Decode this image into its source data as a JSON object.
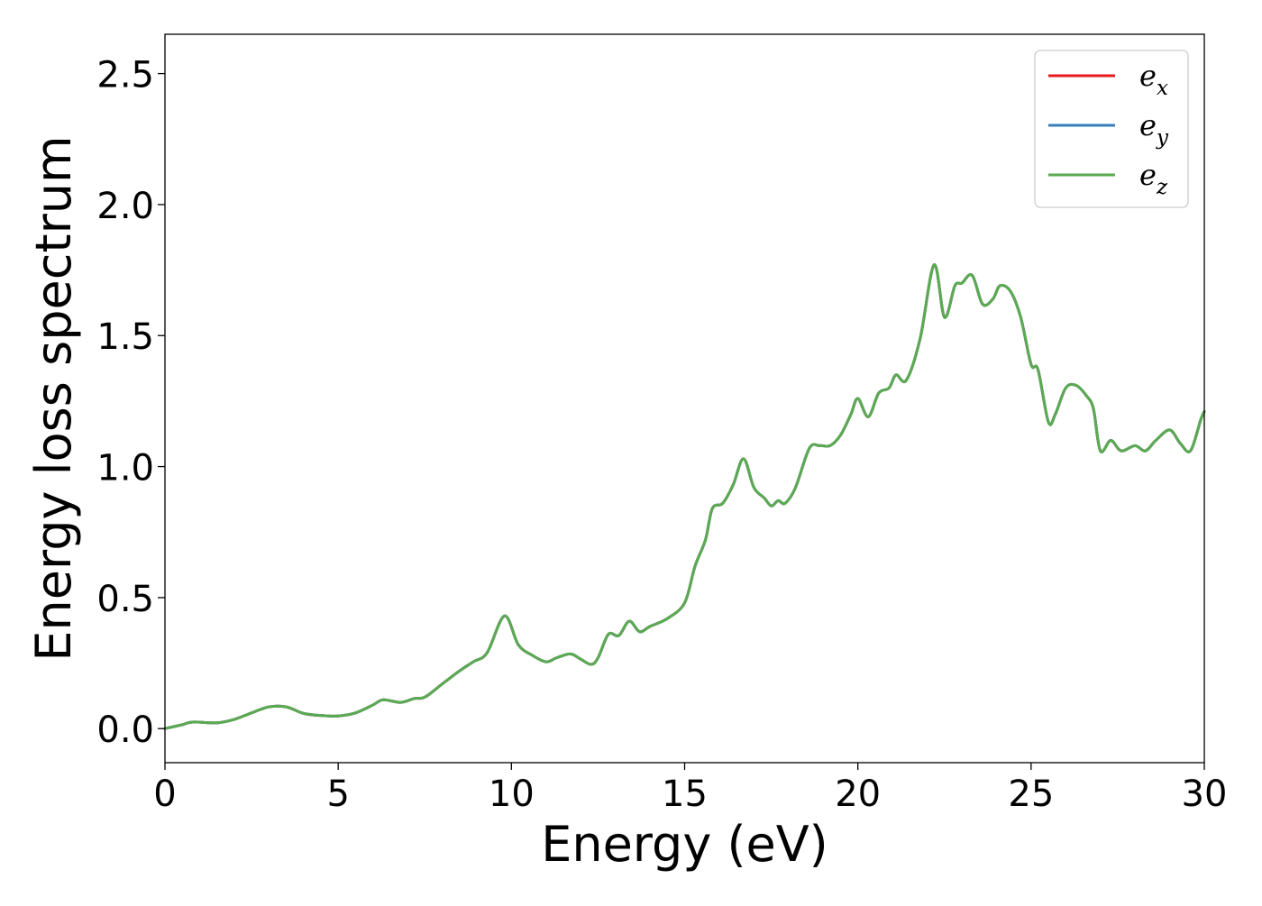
{
  "chart_data": {
    "type": "line",
    "title": "",
    "xlabel": "Energy (eV)",
    "ylabel": "Energy loss spectrum",
    "xlim": [
      0,
      30
    ],
    "ylim": [
      -0.13,
      2.65
    ],
    "xticks": [
      0,
      5,
      10,
      15,
      20,
      25,
      30
    ],
    "xtick_labels": [
      "0",
      "5",
      "10",
      "15",
      "20",
      "25",
      "30"
    ],
    "yticks": [
      0.0,
      0.5,
      1.0,
      1.5,
      2.0,
      2.5
    ],
    "ytick_labels": [
      "0.0",
      "0.5",
      "1.0",
      "1.5",
      "2.0",
      "2.5"
    ],
    "grid": false,
    "legend_position": "top-right",
    "x": [
      0,
      0.5,
      0.8,
      1.5,
      2.0,
      2.5,
      3.0,
      3.5,
      4.0,
      4.5,
      5.0,
      5.5,
      6.0,
      6.3,
      6.8,
      7.2,
      7.5,
      8.0,
      8.5,
      8.9,
      9.3,
      9.8,
      10.2,
      10.6,
      11.0,
      11.3,
      11.7,
      12.0,
      12.3,
      12.5,
      12.8,
      13.1,
      13.4,
      13.7,
      14.0,
      14.5,
      15.0,
      15.3,
      15.6,
      15.8,
      16.1,
      16.4,
      16.7,
      17.0,
      17.3,
      17.5,
      17.7,
      17.9,
      18.2,
      18.6,
      18.9,
      19.2,
      19.5,
      19.8,
      20.0,
      20.3,
      20.6,
      20.9,
      21.1,
      21.4,
      21.8,
      22.2,
      22.5,
      22.8,
      23.0,
      23.3,
      23.6,
      23.9,
      24.1,
      24.4,
      24.7,
      25.0,
      25.2,
      25.5,
      25.7,
      26.0,
      26.3,
      26.6,
      26.8,
      27.0,
      27.3,
      27.6,
      28.0,
      28.3,
      28.6,
      29.0,
      29.3,
      29.6,
      29.9,
      30.0
    ],
    "series": [
      {
        "name": "e_x",
        "color": "#e41a1c",
        "values": [
          0.0,
          0.015,
          0.025,
          0.022,
          0.035,
          0.06,
          0.083,
          0.083,
          0.058,
          0.05,
          0.048,
          0.06,
          0.09,
          0.11,
          0.1,
          0.115,
          0.12,
          0.17,
          0.22,
          0.255,
          0.29,
          0.43,
          0.32,
          0.28,
          0.255,
          0.27,
          0.285,
          0.265,
          0.245,
          0.27,
          0.36,
          0.355,
          0.41,
          0.37,
          0.39,
          0.42,
          0.48,
          0.62,
          0.72,
          0.84,
          0.86,
          0.93,
          1.03,
          0.92,
          0.88,
          0.85,
          0.87,
          0.86,
          0.92,
          1.07,
          1.08,
          1.08,
          1.12,
          1.2,
          1.26,
          1.19,
          1.28,
          1.3,
          1.35,
          1.33,
          1.49,
          1.77,
          1.57,
          1.69,
          1.7,
          1.73,
          1.62,
          1.64,
          1.69,
          1.67,
          1.57,
          1.39,
          1.37,
          1.17,
          1.2,
          1.3,
          1.31,
          1.27,
          1.22,
          1.06,
          1.1,
          1.06,
          1.08,
          1.06,
          1.1,
          1.14,
          1.09,
          1.06,
          1.18,
          1.21
        ]
      },
      {
        "name": "e_y",
        "color": "#377eb8",
        "values": [
          0.0,
          0.015,
          0.025,
          0.022,
          0.035,
          0.06,
          0.083,
          0.083,
          0.058,
          0.05,
          0.048,
          0.06,
          0.09,
          0.11,
          0.1,
          0.115,
          0.12,
          0.17,
          0.22,
          0.255,
          0.29,
          0.43,
          0.32,
          0.28,
          0.255,
          0.27,
          0.285,
          0.265,
          0.245,
          0.27,
          0.36,
          0.355,
          0.41,
          0.37,
          0.39,
          0.42,
          0.48,
          0.62,
          0.72,
          0.84,
          0.86,
          0.93,
          1.03,
          0.92,
          0.88,
          0.85,
          0.87,
          0.86,
          0.92,
          1.07,
          1.08,
          1.08,
          1.12,
          1.2,
          1.26,
          1.19,
          1.28,
          1.3,
          1.35,
          1.33,
          1.49,
          1.77,
          1.57,
          1.69,
          1.7,
          1.73,
          1.62,
          1.64,
          1.69,
          1.67,
          1.57,
          1.39,
          1.37,
          1.17,
          1.2,
          1.3,
          1.31,
          1.27,
          1.22,
          1.06,
          1.1,
          1.06,
          1.08,
          1.06,
          1.1,
          1.14,
          1.09,
          1.06,
          1.18,
          1.21
        ]
      },
      {
        "name": "e_z",
        "color": "#5aaa52",
        "values": [
          0.0,
          0.015,
          0.025,
          0.022,
          0.035,
          0.06,
          0.083,
          0.083,
          0.058,
          0.05,
          0.048,
          0.06,
          0.09,
          0.11,
          0.1,
          0.115,
          0.12,
          0.17,
          0.22,
          0.255,
          0.29,
          0.43,
          0.32,
          0.28,
          0.255,
          0.27,
          0.285,
          0.265,
          0.245,
          0.27,
          0.36,
          0.355,
          0.41,
          0.37,
          0.39,
          0.42,
          0.48,
          0.62,
          0.72,
          0.84,
          0.86,
          0.93,
          1.03,
          0.92,
          0.88,
          0.85,
          0.87,
          0.86,
          0.92,
          1.07,
          1.08,
          1.08,
          1.12,
          1.2,
          1.26,
          1.19,
          1.28,
          1.3,
          1.35,
          1.33,
          1.49,
          1.77,
          1.57,
          1.69,
          1.7,
          1.73,
          1.62,
          1.64,
          1.69,
          1.67,
          1.57,
          1.39,
          1.37,
          1.17,
          1.2,
          1.3,
          1.31,
          1.27,
          1.22,
          1.06,
          1.1,
          1.06,
          1.08,
          1.06,
          1.1,
          1.14,
          1.09,
          1.06,
          1.18,
          1.21
        ]
      }
    ],
    "legend": [
      {
        "base": "e",
        "sub": "x",
        "color": "#e41a1c"
      },
      {
        "base": "e",
        "sub": "y",
        "color": "#377eb8"
      },
      {
        "base": "e",
        "sub": "z",
        "color": "#5aaa52"
      }
    ]
  }
}
